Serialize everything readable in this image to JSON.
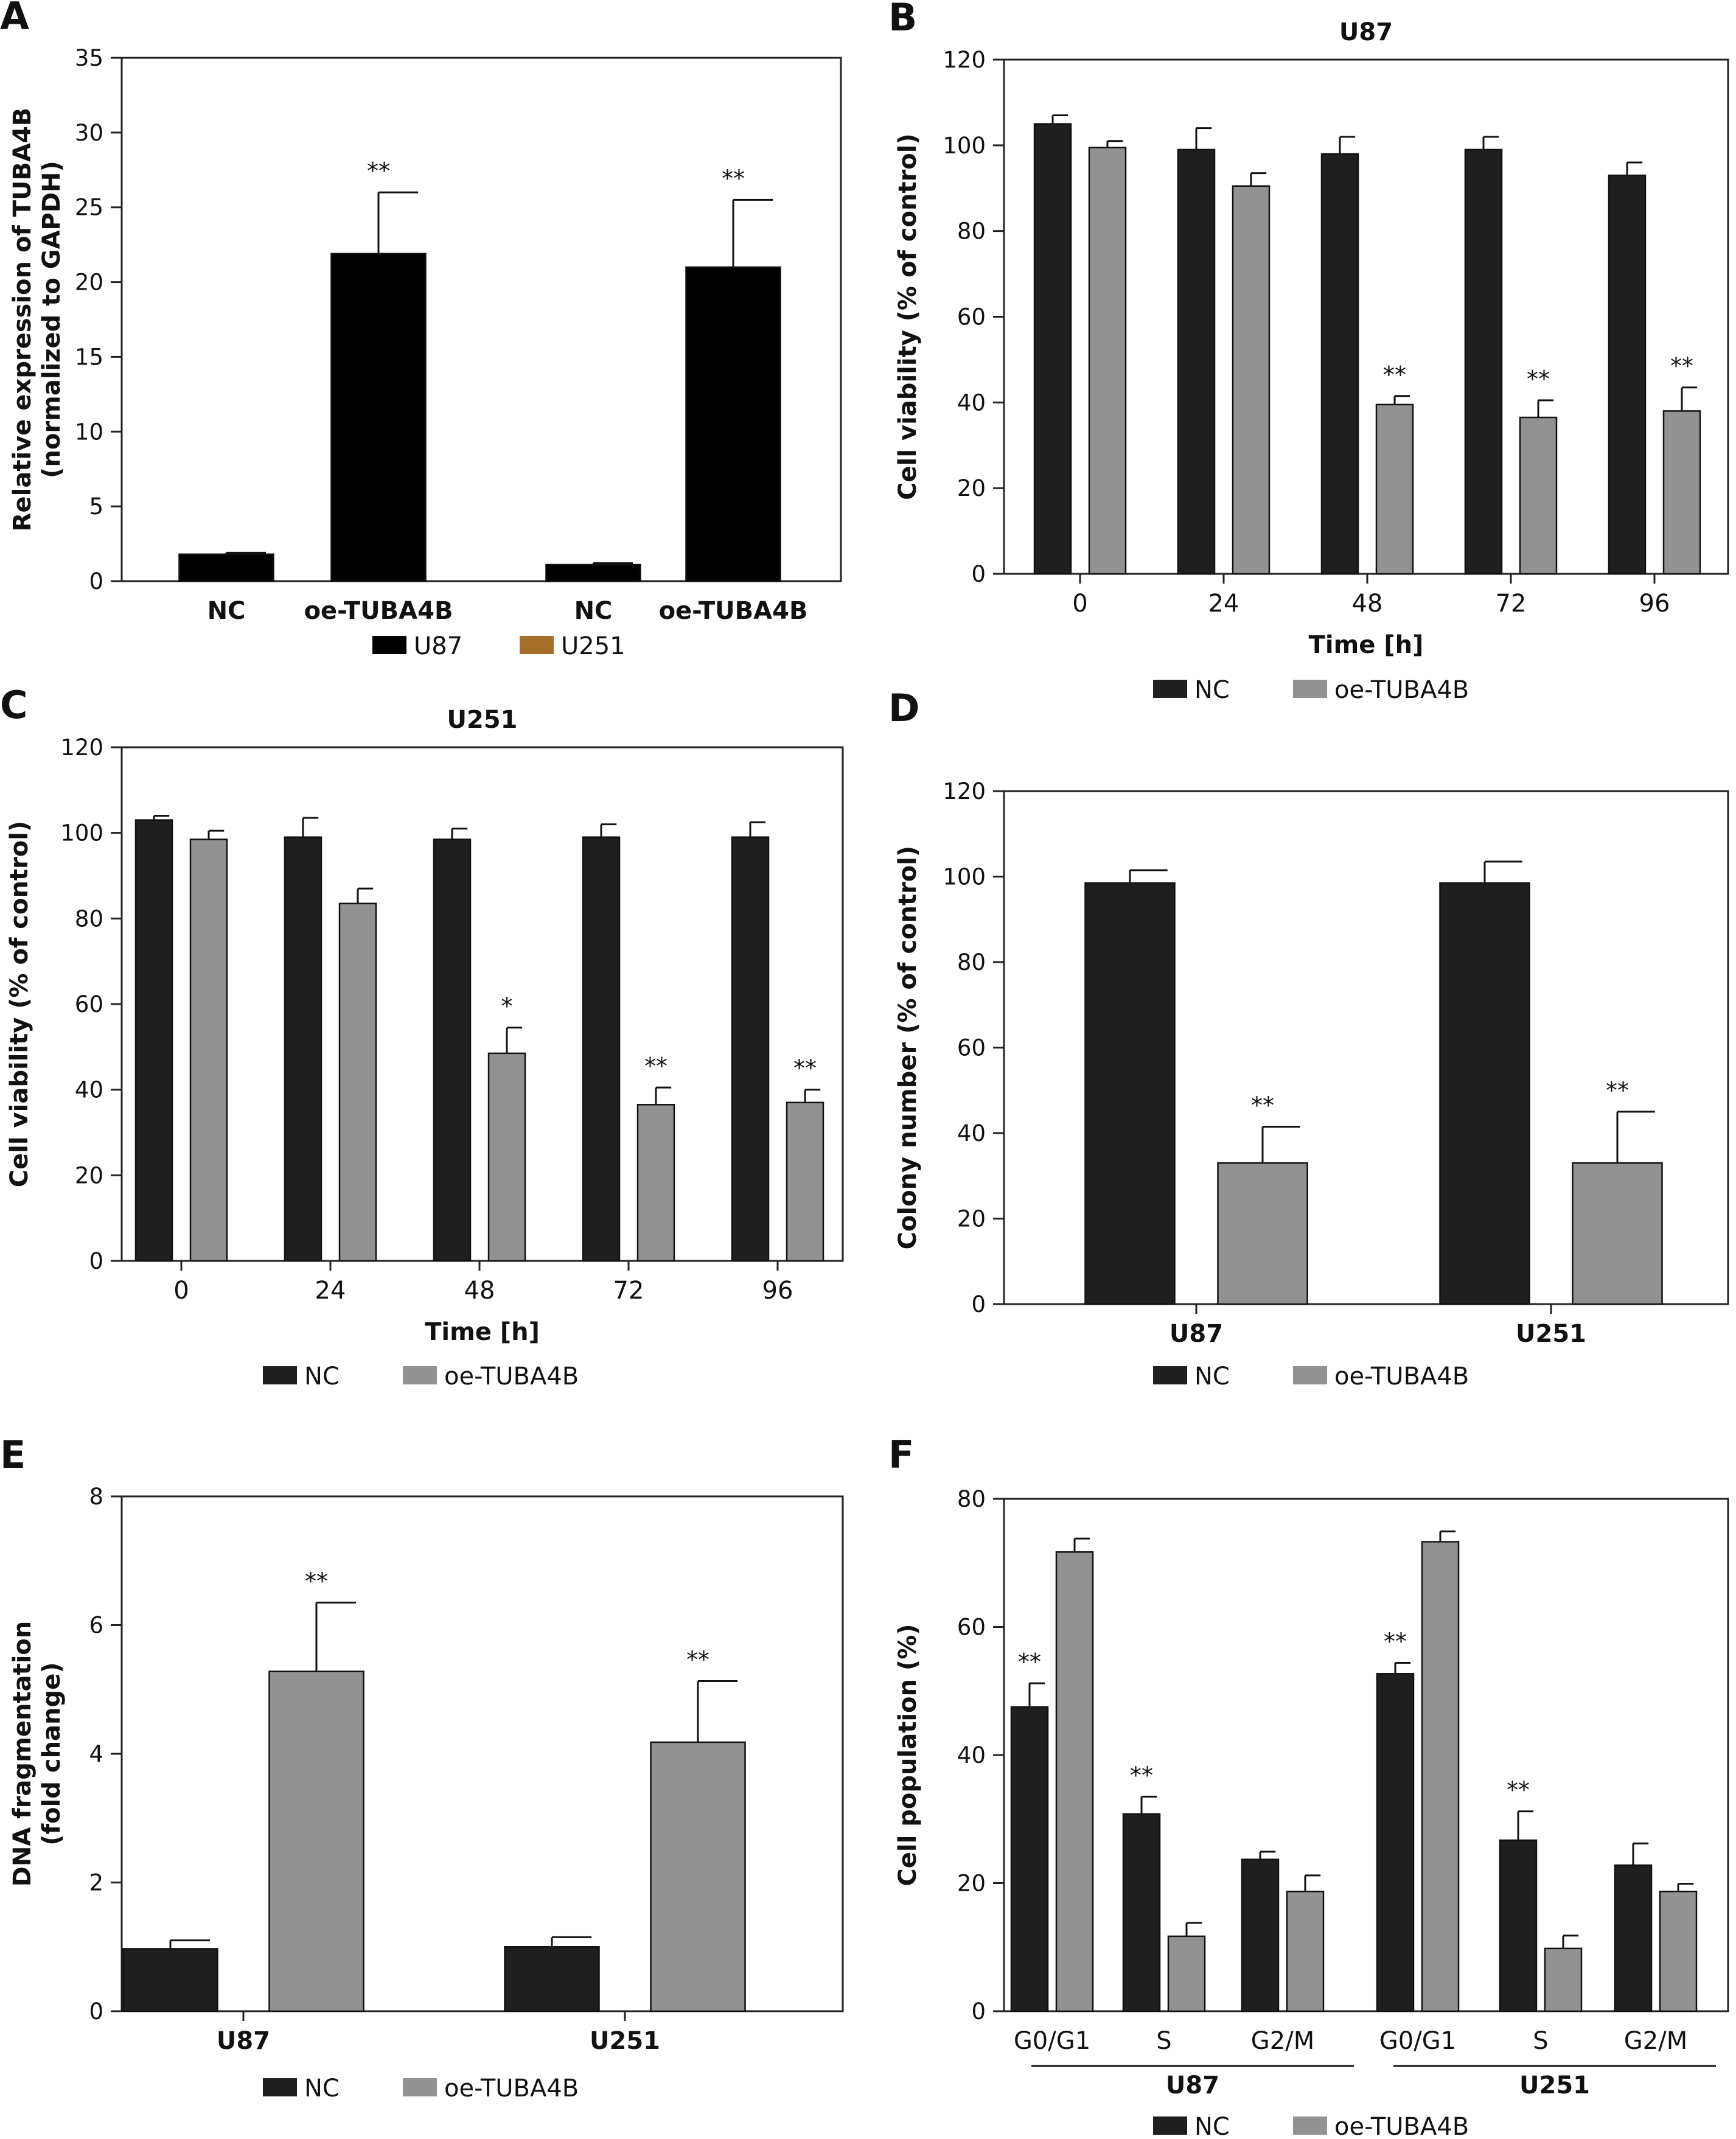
{
  "colors": {
    "dark": "#1f1f1f",
    "gray": "#929292",
    "brown": "#a56f27",
    "black": "#000000"
  },
  "chart_data": [
    {
      "panel": "A",
      "type": "bar",
      "title": "",
      "xlabel": "",
      "ylabel": "Relative expression of TUBA4B",
      "ylabel2": "(normalized to GAPDH)",
      "ylim": [
        0,
        35
      ],
      "yticks": [
        0,
        5,
        10,
        15,
        20,
        25,
        30,
        35
      ],
      "categories": [
        "NC",
        "oe-TUBA4B",
        "NC",
        "oe-TUBA4B"
      ],
      "values": [
        1.8,
        21.9,
        1.1,
        21.0
      ],
      "errors": [
        0.1,
        4.1,
        0.1,
        4.5
      ],
      "bar_series": [
        0,
        0,
        1,
        1
      ],
      "sig": [
        "",
        "**",
        "",
        "**"
      ],
      "series": [
        {
          "name": "U87"
        },
        {
          "name": "U251"
        }
      ],
      "legend": "bottom"
    },
    {
      "panel": "B",
      "type": "bar",
      "title": "U87",
      "xlabel": "Time [h]",
      "ylabel": "Cell viability (% of control)",
      "ylim": [
        0,
        120
      ],
      "yticks": [
        0,
        20,
        40,
        60,
        80,
        100,
        120
      ],
      "categories": [
        "0",
        "24",
        "48",
        "72",
        "96"
      ],
      "series": [
        {
          "name": "NC",
          "values": [
            105,
            99,
            98,
            99,
            93
          ],
          "errors": [
            2,
            5,
            4,
            3,
            3
          ],
          "sig": [
            "",
            "",
            "",
            "",
            ""
          ]
        },
        {
          "name": "oe-TUBA4B",
          "values": [
            99.5,
            90.5,
            39.5,
            36.5,
            38
          ],
          "errors": [
            1.5,
            3,
            2,
            4,
            5.5
          ],
          "sig": [
            "",
            "",
            "**",
            "**",
            "**"
          ]
        }
      ],
      "legend": "bottom"
    },
    {
      "panel": "C",
      "type": "bar",
      "title": "U251",
      "xlabel": "Time [h]",
      "ylabel": "Cell viability (% of control)",
      "ylim": [
        0,
        120
      ],
      "yticks": [
        0,
        20,
        40,
        60,
        80,
        100,
        120
      ],
      "categories": [
        "0",
        "24",
        "48",
        "72",
        "96"
      ],
      "series": [
        {
          "name": "NC",
          "values": [
            103,
            99,
            98.5,
            99,
            99
          ],
          "errors": [
            1,
            4.5,
            2.5,
            3,
            3.5
          ],
          "sig": [
            "",
            "",
            "",
            "",
            ""
          ]
        },
        {
          "name": "oe-TUBA4B",
          "values": [
            98.5,
            83.5,
            48.5,
            36.5,
            37
          ],
          "errors": [
            2,
            3.5,
            6,
            4,
            3
          ],
          "sig": [
            "",
            "",
            "*",
            "**",
            "**"
          ]
        }
      ],
      "legend": "bottom"
    },
    {
      "panel": "D",
      "type": "bar",
      "title": "",
      "xlabel": "",
      "ylabel": "Colony number (% of control)",
      "ylim": [
        0,
        120
      ],
      "yticks": [
        0,
        20,
        40,
        60,
        80,
        100,
        120
      ],
      "categories": [
        "U87",
        "U251"
      ],
      "series": [
        {
          "name": "NC",
          "values": [
            98.5,
            98.5
          ],
          "errors": [
            3,
            5
          ],
          "sig": [
            "",
            ""
          ]
        },
        {
          "name": "oe-TUBA4B",
          "values": [
            33,
            33
          ],
          "errors": [
            8.5,
            12
          ],
          "sig": [
            "**",
            "**"
          ]
        }
      ],
      "legend": "bottom"
    },
    {
      "panel": "E",
      "type": "bar",
      "title": "",
      "xlabel": "",
      "ylabel": "DNA fragmentation",
      "ylabel2": "(fold change)",
      "ylim": [
        0,
        8
      ],
      "yticks": [
        0,
        2,
        4,
        6,
        8
      ],
      "categories": [
        "U87",
        "U251"
      ],
      "series": [
        {
          "name": "NC",
          "values": [
            0.97,
            1.0
          ],
          "errors": [
            0.13,
            0.15
          ],
          "sig": [
            "",
            ""
          ]
        },
        {
          "name": "oe-TUBA4B",
          "values": [
            5.28,
            4.18
          ],
          "errors": [
            1.07,
            0.95
          ],
          "sig": [
            "**",
            "**"
          ]
        }
      ],
      "legend": "bottom"
    },
    {
      "panel": "F",
      "type": "bar",
      "title": "",
      "xlabel": "",
      "ylabel": "Cell population (%)",
      "ylim": [
        0,
        80
      ],
      "yticks": [
        0,
        20,
        40,
        60,
        80
      ],
      "categories": [
        "G0/G1",
        "S",
        "G2/M",
        "G0/G1",
        "S",
        "G2/M"
      ],
      "groups": [
        "U87",
        "U251"
      ],
      "series": [
        {
          "name": "NC",
          "values": [
            47.5,
            30.8,
            23.7,
            52.7,
            26.7,
            22.8
          ],
          "errors": [
            3.7,
            2.7,
            1.2,
            1.7,
            4.5,
            3.4
          ],
          "sig": [
            "**",
            "**",
            "",
            "**",
            "**",
            ""
          ]
        },
        {
          "name": "oe-TUBA4B",
          "values": [
            71.7,
            11.7,
            18.7,
            73.3,
            9.8,
            18.7
          ],
          "errors": [
            2.1,
            2.1,
            2.5,
            1.6,
            2.0,
            1.2
          ],
          "sig": [
            "",
            "",
            "",
            "",
            "",
            ""
          ]
        }
      ],
      "legend": "bottom"
    }
  ]
}
